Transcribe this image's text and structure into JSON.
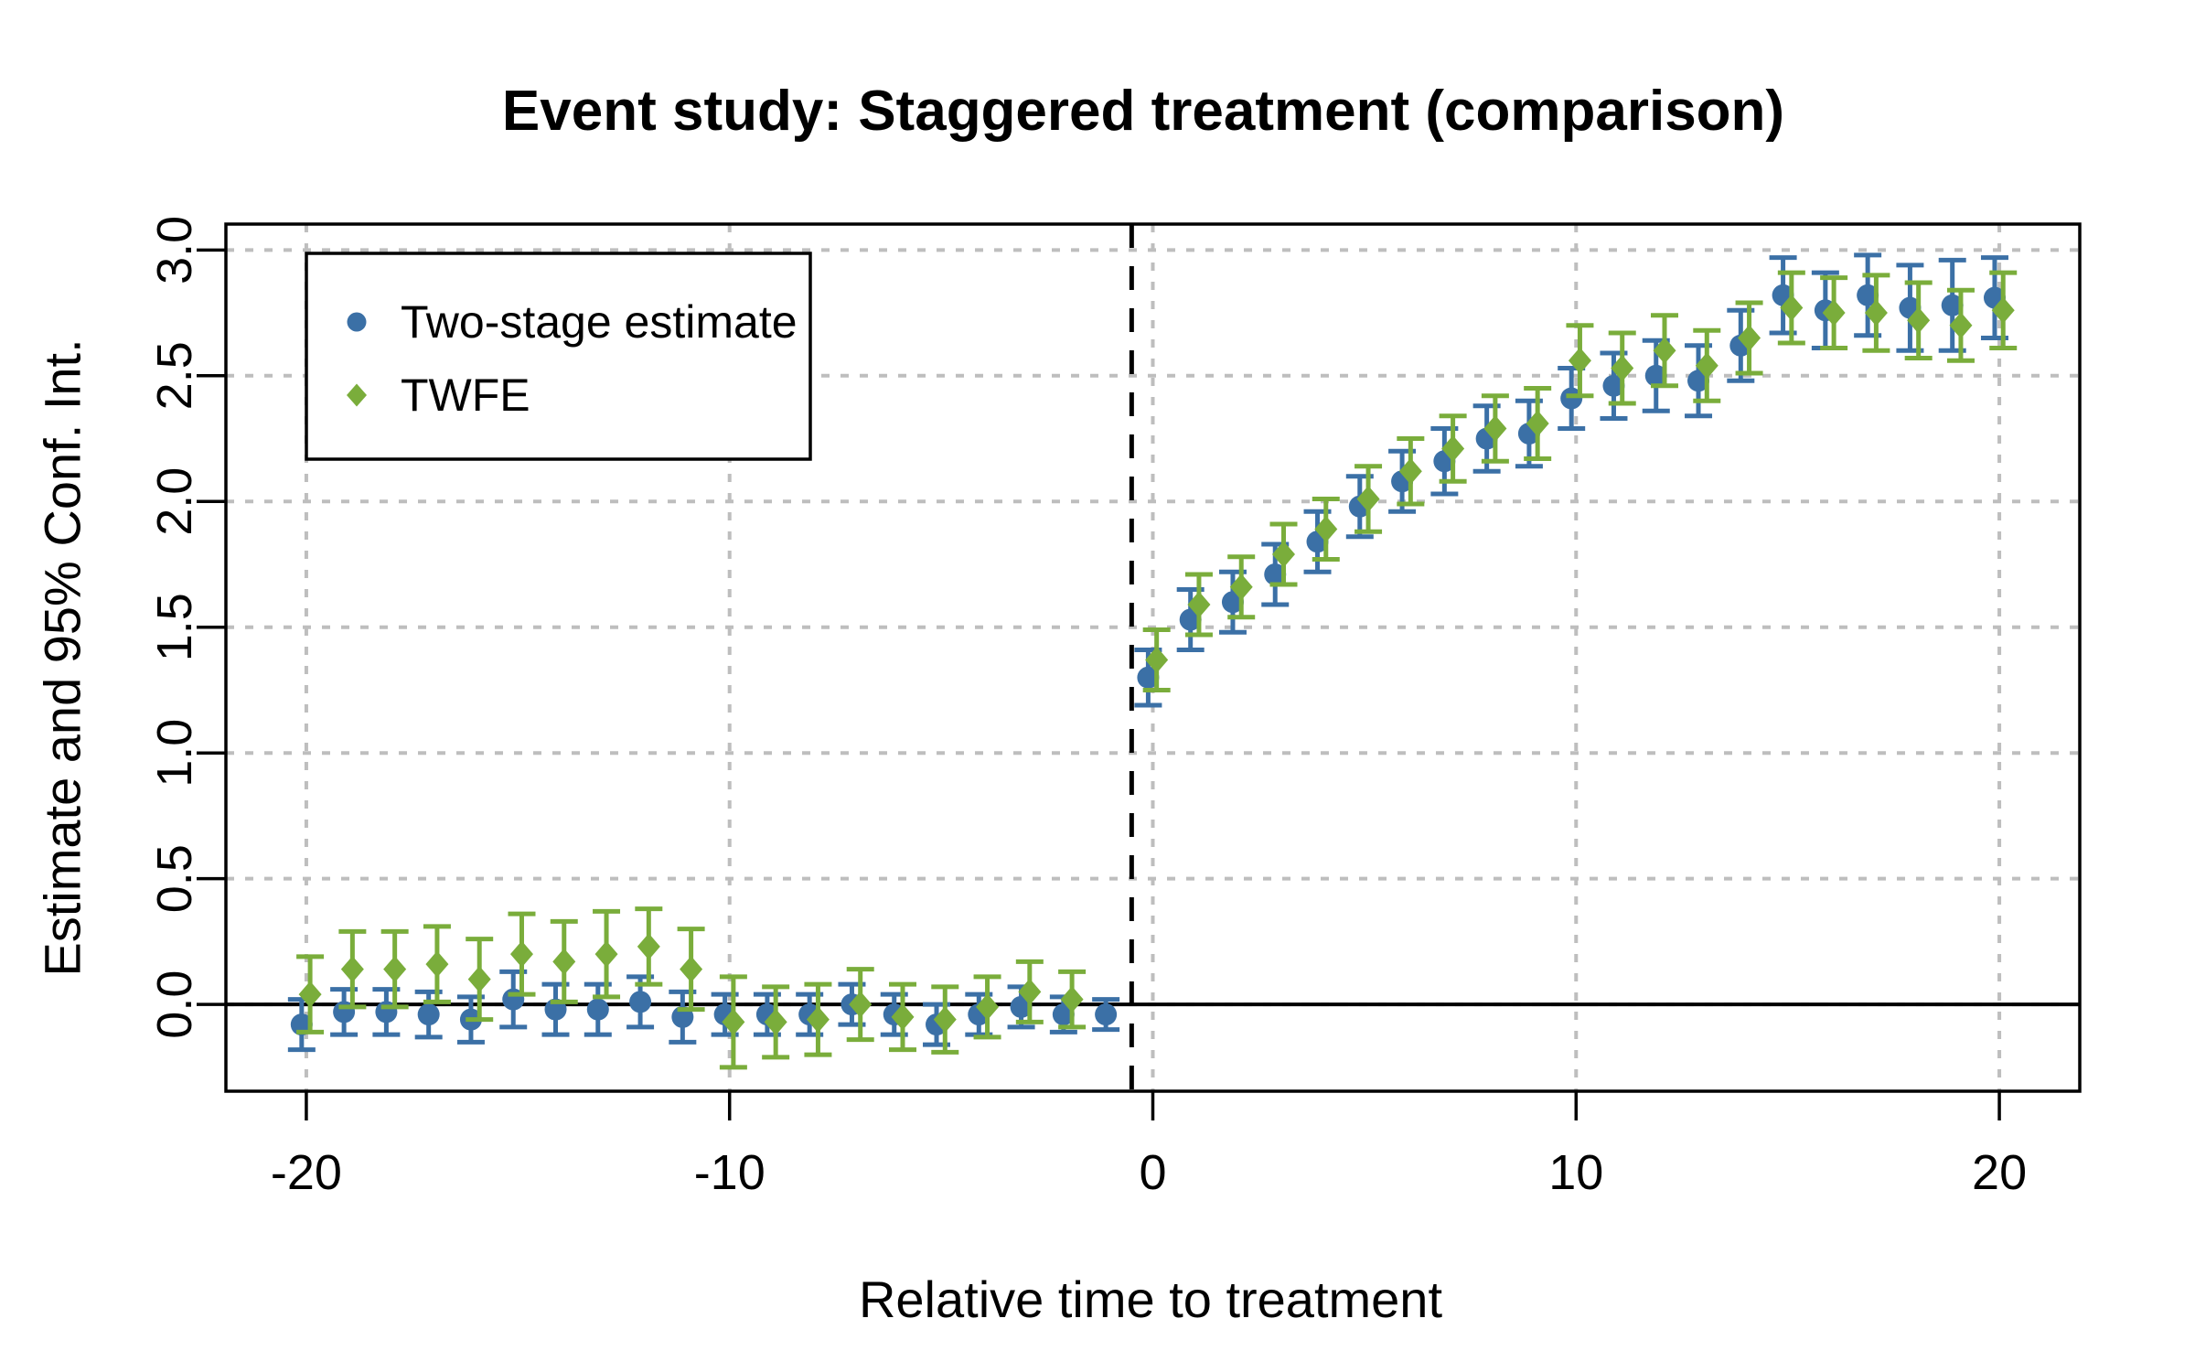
{
  "page": {
    "background": "#FFFFFF"
  },
  "chart_data": {
    "type": "scatter",
    "title": "Event study: Staggered treatment (comparison)",
    "xlabel": "Relative time to treatment",
    "ylabel": "Estimate and 95% Conf. Int.",
    "x_ticks": [
      {
        "value": -20,
        "label": "-20"
      },
      {
        "value": -10,
        "label": "-10"
      },
      {
        "value": 0,
        "label": "0"
      },
      {
        "value": 10,
        "label": "10"
      },
      {
        "value": 20,
        "label": "20"
      }
    ],
    "y_ticks": [
      {
        "value": 0.0,
        "label": "0.0"
      },
      {
        "value": 0.5,
        "label": "0.5"
      },
      {
        "value": 1.0,
        "label": "1.0"
      },
      {
        "value": 1.5,
        "label": "1.5"
      },
      {
        "value": 2.0,
        "label": "2.0"
      },
      {
        "value": 2.5,
        "label": "2.5"
      },
      {
        "value": 3.0,
        "label": "3.0"
      }
    ],
    "xlim": [
      -21.9,
      21.9
    ],
    "ylim": [
      -0.345,
      3.103
    ],
    "grid": {
      "show": true,
      "color": "#BEBEBE",
      "style": "dashed"
    },
    "reference_lines": [
      {
        "axis": "y",
        "value": 0,
        "style": "solid",
        "color": "#000000"
      },
      {
        "axis": "x",
        "value": -0.5,
        "style": "dashed",
        "color": "#000000"
      }
    ],
    "legend": {
      "position": "top-left",
      "items": [
        {
          "label": "Two-stage estimate",
          "marker": "circle",
          "color": "#3B70A6"
        },
        {
          "label": "TWFE",
          "marker": "diamond",
          "color": "#7AAD3B"
        }
      ]
    },
    "series": [
      {
        "name": "Two-stage estimate",
        "marker": "circle",
        "color": "#3B70A6",
        "dodge": -0.11,
        "points": [
          {
            "t": -20,
            "est": -0.08,
            "ci": 0.1
          },
          {
            "t": -19,
            "est": -0.03,
            "ci": 0.09
          },
          {
            "t": -18,
            "est": -0.03,
            "ci": 0.09
          },
          {
            "t": -17,
            "est": -0.04,
            "ci": 0.09
          },
          {
            "t": -16,
            "est": -0.06,
            "ci": 0.09
          },
          {
            "t": -15,
            "est": 0.02,
            "ci": 0.11
          },
          {
            "t": -14,
            "est": -0.02,
            "ci": 0.1
          },
          {
            "t": -13,
            "est": -0.02,
            "ci": 0.1
          },
          {
            "t": -12,
            "est": 0.01,
            "ci": 0.1
          },
          {
            "t": -11,
            "est": -0.05,
            "ci": 0.1
          },
          {
            "t": -10,
            "est": -0.04,
            "ci": 0.08
          },
          {
            "t": -9,
            "est": -0.04,
            "ci": 0.08
          },
          {
            "t": -8,
            "est": -0.04,
            "ci": 0.08
          },
          {
            "t": -7,
            "est": 0.0,
            "ci": 0.08
          },
          {
            "t": -6,
            "est": -0.04,
            "ci": 0.08
          },
          {
            "t": -5,
            "est": -0.08,
            "ci": 0.08
          },
          {
            "t": -4,
            "est": -0.04,
            "ci": 0.08
          },
          {
            "t": -3,
            "est": -0.01,
            "ci": 0.08
          },
          {
            "t": -2,
            "est": -0.04,
            "ci": 0.07
          },
          {
            "t": -1,
            "est": -0.04,
            "ci": 0.06
          },
          {
            "t": 0,
            "est": 1.3,
            "ci": 0.11
          },
          {
            "t": 1,
            "est": 1.53,
            "ci": 0.12
          },
          {
            "t": 2,
            "est": 1.6,
            "ci": 0.12
          },
          {
            "t": 3,
            "est": 1.71,
            "ci": 0.12
          },
          {
            "t": 4,
            "est": 1.84,
            "ci": 0.12
          },
          {
            "t": 5,
            "est": 1.98,
            "ci": 0.12
          },
          {
            "t": 6,
            "est": 2.08,
            "ci": 0.12
          },
          {
            "t": 7,
            "est": 2.16,
            "ci": 0.13
          },
          {
            "t": 8,
            "est": 2.25,
            "ci": 0.13
          },
          {
            "t": 9,
            "est": 2.27,
            "ci": 0.13
          },
          {
            "t": 10,
            "est": 2.41,
            "ci": 0.12
          },
          {
            "t": 11,
            "est": 2.46,
            "ci": 0.13
          },
          {
            "t": 12,
            "est": 2.5,
            "ci": 0.14
          },
          {
            "t": 13,
            "est": 2.48,
            "ci": 0.14
          },
          {
            "t": 14,
            "est": 2.62,
            "ci": 0.14
          },
          {
            "t": 15,
            "est": 2.82,
            "ci": 0.15
          },
          {
            "t": 16,
            "est": 2.76,
            "ci": 0.15
          },
          {
            "t": 17,
            "est": 2.82,
            "ci": 0.16
          },
          {
            "t": 18,
            "est": 2.77,
            "ci": 0.17
          },
          {
            "t": 19,
            "est": 2.78,
            "ci": 0.18
          },
          {
            "t": 20,
            "est": 2.81,
            "ci": 0.16
          }
        ]
      },
      {
        "name": "TWFE",
        "marker": "diamond",
        "color": "#7AAD3B",
        "dodge": 0.09,
        "points": [
          {
            "t": -20,
            "est": 0.04,
            "ci": 0.15
          },
          {
            "t": -19,
            "est": 0.14,
            "ci": 0.15
          },
          {
            "t": -18,
            "est": 0.14,
            "ci": 0.15
          },
          {
            "t": -17,
            "est": 0.16,
            "ci": 0.15
          },
          {
            "t": -16,
            "est": 0.1,
            "ci": 0.16
          },
          {
            "t": -15,
            "est": 0.2,
            "ci": 0.16
          },
          {
            "t": -14,
            "est": 0.17,
            "ci": 0.16
          },
          {
            "t": -13,
            "est": 0.2,
            "ci": 0.17
          },
          {
            "t": -12,
            "est": 0.23,
            "ci": 0.15
          },
          {
            "t": -11,
            "est": 0.14,
            "ci": 0.16
          },
          {
            "t": -10,
            "est": -0.07,
            "ci": 0.18
          },
          {
            "t": -9,
            "est": -0.07,
            "ci": 0.14
          },
          {
            "t": -8,
            "est": -0.06,
            "ci": 0.14
          },
          {
            "t": -7,
            "est": 0.0,
            "ci": 0.14
          },
          {
            "t": -6,
            "est": -0.05,
            "ci": 0.13
          },
          {
            "t": -5,
            "est": -0.06,
            "ci": 0.13
          },
          {
            "t": -4,
            "est": -0.01,
            "ci": 0.12
          },
          {
            "t": -3,
            "est": 0.05,
            "ci": 0.12
          },
          {
            "t": -2,
            "est": 0.02,
            "ci": 0.11
          },
          {
            "t": 0,
            "est": 1.37,
            "ci": 0.12
          },
          {
            "t": 1,
            "est": 1.59,
            "ci": 0.12
          },
          {
            "t": 2,
            "est": 1.66,
            "ci": 0.12
          },
          {
            "t": 3,
            "est": 1.79,
            "ci": 0.12
          },
          {
            "t": 4,
            "est": 1.89,
            "ci": 0.12
          },
          {
            "t": 5,
            "est": 2.01,
            "ci": 0.13
          },
          {
            "t": 6,
            "est": 2.12,
            "ci": 0.13
          },
          {
            "t": 7,
            "est": 2.21,
            "ci": 0.13
          },
          {
            "t": 8,
            "est": 2.29,
            "ci": 0.13
          },
          {
            "t": 9,
            "est": 2.31,
            "ci": 0.14
          },
          {
            "t": 10,
            "est": 2.56,
            "ci": 0.14
          },
          {
            "t": 11,
            "est": 2.53,
            "ci": 0.14
          },
          {
            "t": 12,
            "est": 2.6,
            "ci": 0.14
          },
          {
            "t": 13,
            "est": 2.54,
            "ci": 0.14
          },
          {
            "t": 14,
            "est": 2.65,
            "ci": 0.14
          },
          {
            "t": 15,
            "est": 2.77,
            "ci": 0.14
          },
          {
            "t": 16,
            "est": 2.75,
            "ci": 0.14
          },
          {
            "t": 17,
            "est": 2.75,
            "ci": 0.15
          },
          {
            "t": 18,
            "est": 2.72,
            "ci": 0.15
          },
          {
            "t": 19,
            "est": 2.7,
            "ci": 0.14
          },
          {
            "t": 20,
            "est": 2.76,
            "ci": 0.15
          }
        ]
      }
    ]
  }
}
